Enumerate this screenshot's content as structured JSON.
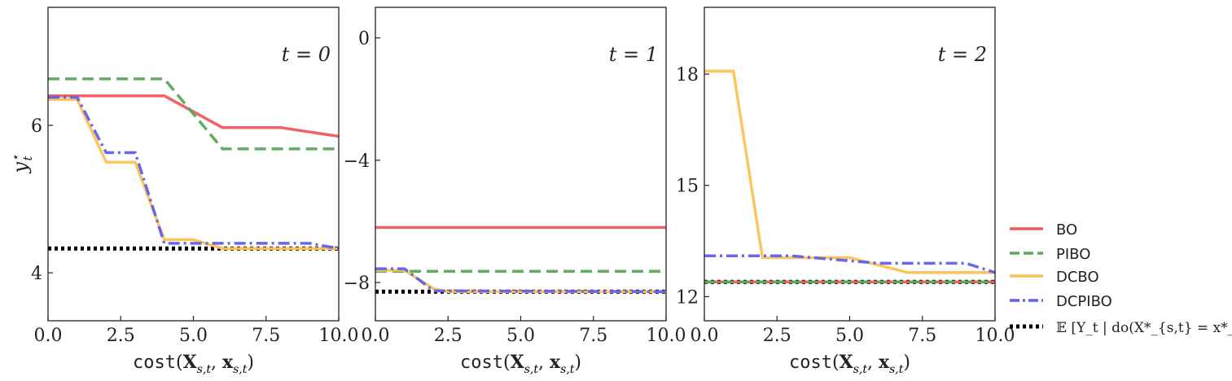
{
  "chart_data": [
    {
      "type": "line",
      "annotation": "t = 0",
      "xlabel": "cost(X_{s,t}, x_{s,t})",
      "ylabel": "y*_t",
      "xlim": [
        0,
        10
      ],
      "ylim": [
        3.35,
        7.6
      ],
      "xticks": [
        "0.0",
        "2.5",
        "5.0",
        "7.5",
        "10.0"
      ],
      "yticks": [
        4,
        6
      ],
      "series": [
        {
          "name": "BO",
          "x": [
            0,
            4,
            6,
            8,
            10
          ],
          "y": [
            6.4,
            6.4,
            5.97,
            5.97,
            5.85
          ]
        },
        {
          "name": "PIBO",
          "x": [
            0,
            4,
            6,
            10
          ],
          "y": [
            6.63,
            6.63,
            5.68,
            5.68
          ]
        },
        {
          "name": "DCBO",
          "x": [
            0,
            1,
            2,
            3,
            4,
            5,
            6,
            10
          ],
          "y": [
            6.35,
            6.35,
            5.5,
            5.5,
            4.45,
            4.45,
            4.33,
            4.33
          ]
        },
        {
          "name": "DCPIBO",
          "x": [
            0,
            1,
            2,
            3,
            4,
            9,
            10
          ],
          "y": [
            6.38,
            6.38,
            5.63,
            5.63,
            4.4,
            4.4,
            4.33
          ]
        },
        {
          "name": "E",
          "x": [
            0,
            10
          ],
          "y": [
            4.33,
            4.33
          ]
        }
      ]
    },
    {
      "type": "line",
      "annotation": "t = 1",
      "xlabel": "cost(X_{s,t}, x_{s,t})",
      "xlim": [
        0,
        10
      ],
      "ylim": [
        -9.25,
        1.0
      ],
      "xticks": [
        "0.0",
        "2.5",
        "5.0",
        "7.5",
        "10.0"
      ],
      "yticks": [
        0,
        -4,
        -8
      ],
      "series": [
        {
          "name": "BO",
          "x": [
            0,
            10
          ],
          "y": [
            -6.2,
            -6.2
          ]
        },
        {
          "name": "PIBO",
          "x": [
            0,
            10
          ],
          "y": [
            -7.63,
            -7.63
          ]
        },
        {
          "name": "DCBO",
          "x": [
            0,
            1,
            2,
            2.5,
            10
          ],
          "y": [
            -7.6,
            -7.6,
            -8.2,
            -8.3,
            -8.3
          ]
        },
        {
          "name": "DCPIBO",
          "x": [
            0,
            1,
            2,
            10
          ],
          "y": [
            -7.55,
            -7.55,
            -8.27,
            -8.3
          ]
        },
        {
          "name": "E",
          "x": [
            0,
            10
          ],
          "y": [
            -8.3,
            -8.3
          ]
        }
      ]
    },
    {
      "type": "line",
      "annotation": "t = 2",
      "xlabel": "cost(X_{s,t}, x_{s,t})",
      "xlim": [
        0,
        10
      ],
      "ylim": [
        11.35,
        19.8
      ],
      "xticks": [
        "0.0",
        "2.5",
        "5.0",
        "7.5",
        "10.0"
      ],
      "yticks": [
        12,
        15,
        18
      ],
      "series": [
        {
          "name": "BO",
          "x": [
            0,
            10
          ],
          "y": [
            12.4,
            12.4
          ]
        },
        {
          "name": "PIBO",
          "x": [
            0,
            10
          ],
          "y": [
            12.4,
            12.4
          ]
        },
        {
          "name": "DCBO",
          "x": [
            0,
            1,
            2,
            5,
            7,
            10
          ],
          "y": [
            18.08,
            18.08,
            13.05,
            13.05,
            12.65,
            12.65
          ]
        },
        {
          "name": "DCPIBO",
          "x": [
            0,
            3,
            6,
            9,
            10
          ],
          "y": [
            13.1,
            13.1,
            12.9,
            12.9,
            12.65
          ]
        },
        {
          "name": "E",
          "x": [
            0,
            10
          ],
          "y": [
            12.4,
            12.4
          ]
        }
      ]
    }
  ],
  "legend": {
    "placement": "right",
    "items": [
      {
        "label": "BO",
        "color": "#f25a5a",
        "dash": "solid"
      },
      {
        "label": "PIBO",
        "color": "#5aa85a",
        "dash": "dashed"
      },
      {
        "label": "DCBO",
        "color": "#fcc254",
        "dash": "solid"
      },
      {
        "label": "DCPIBO",
        "color": "#6060ee",
        "dash": "dashdot"
      },
      {
        "label": "𝔼 [Y_t | do(X*_{s,t} = x*_{s,t})]",
        "color": "#000000",
        "dash": "dotted"
      }
    ]
  }
}
